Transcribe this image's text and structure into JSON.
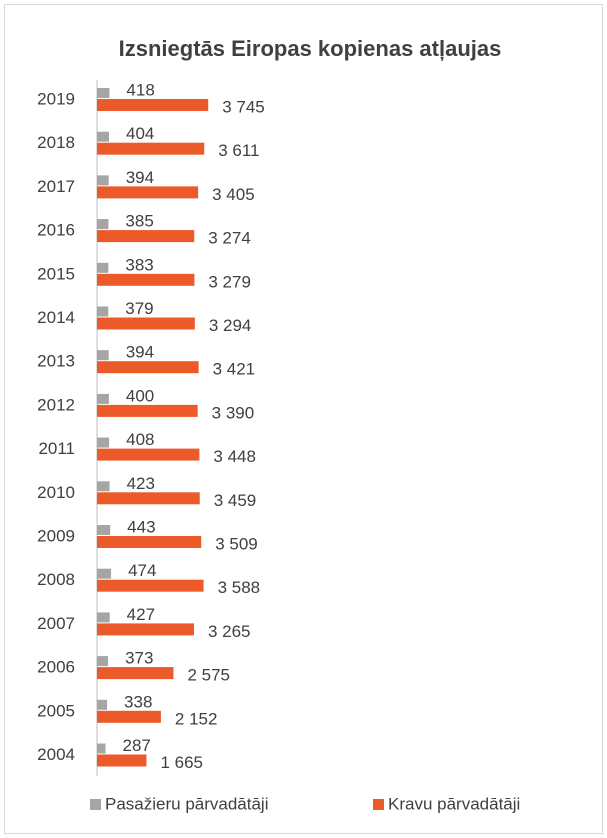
{
  "chart_data": {
    "type": "bar",
    "orientation": "horizontal",
    "title": "Izsniegtās Eiropas kopienas atļaujas",
    "categories": [
      "2019",
      "2018",
      "2017",
      "2016",
      "2015",
      "2014",
      "2013",
      "2012",
      "2011",
      "2010",
      "2009",
      "2008",
      "2007",
      "2006",
      "2005",
      "2004"
    ],
    "series": [
      {
        "name": "Pasažieru pārvadātāji",
        "color": "#a5a5a5",
        "values": [
          418,
          404,
          394,
          385,
          383,
          379,
          394,
          400,
          408,
          423,
          443,
          474,
          427,
          373,
          338,
          287
        ]
      },
      {
        "name": "Kravu pārvadātāji",
        "color": "#ed5a2a",
        "values": [
          3745,
          3611,
          3405,
          3274,
          3279,
          3294,
          3421,
          3390,
          3448,
          3459,
          3509,
          3588,
          3265,
          2575,
          2152,
          1665
        ],
        "value_labels": [
          "3 745",
          "3 611",
          "3 405",
          "3 274",
          "3 279",
          "3 294",
          "3 421",
          "3 390",
          "3 448",
          "3 459",
          "3 509",
          "3 588",
          "3 265",
          "2 575",
          "2 152",
          "1 665"
        ]
      }
    ],
    "legend": "bottom"
  }
}
